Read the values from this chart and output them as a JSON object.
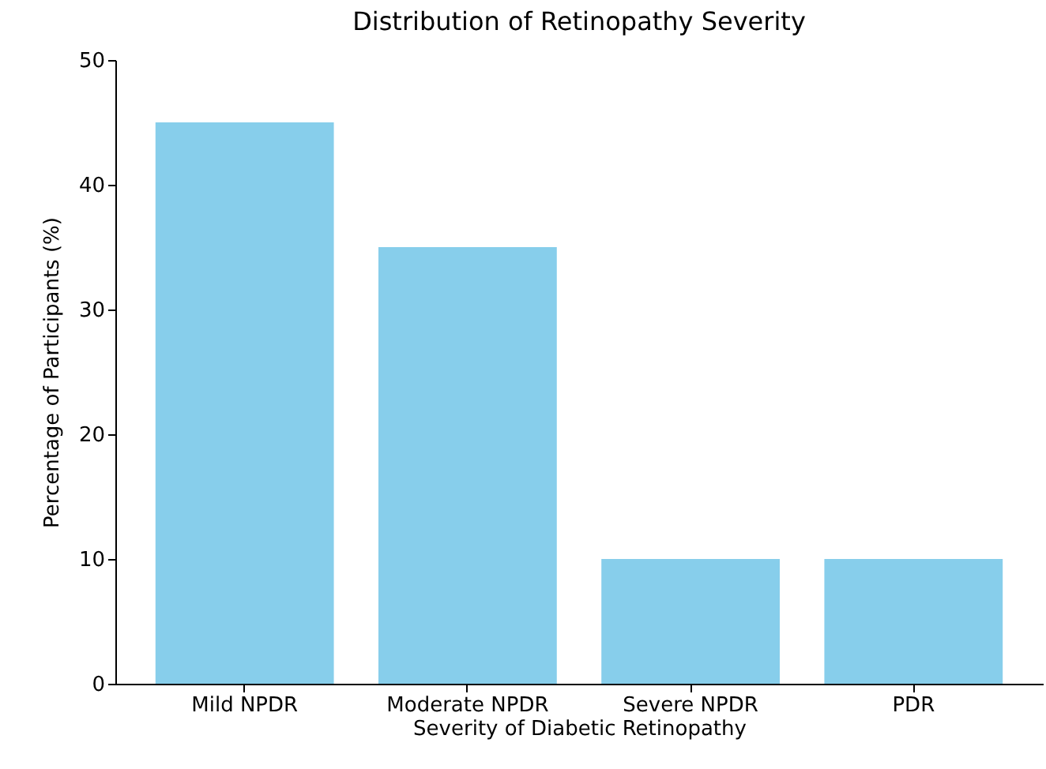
{
  "chart_data": {
    "type": "bar",
    "title": "Distribution of Retinopathy Severity",
    "xlabel": "Severity of Diabetic Retinopathy",
    "ylabel": "Percentage of Participants (%)",
    "categories": [
      "Mild NPDR",
      "Moderate NPDR",
      "Severe NPDR",
      "PDR"
    ],
    "values": [
      45,
      35,
      10,
      10
    ],
    "color": "#87ceeb",
    "ylim": [
      0,
      50
    ],
    "yticks": [
      0,
      10,
      20,
      30,
      40,
      50
    ],
    "grid": false
  }
}
